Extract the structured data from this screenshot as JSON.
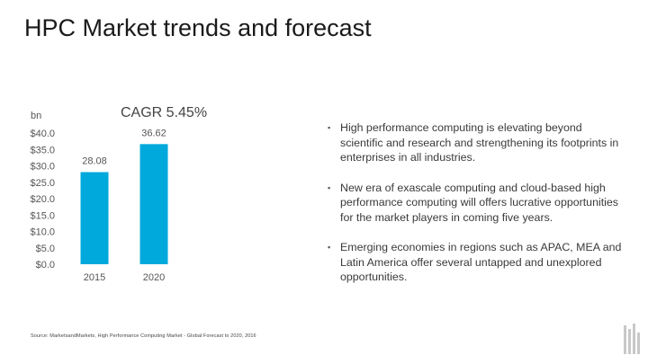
{
  "slide": {
    "title": "HPC Market trends and forecast",
    "source": "Source: MarketsandMarkets, High Performance Computing Market - Global Forecast to 2020, 2016"
  },
  "chart_data": {
    "type": "bar",
    "title": "CAGR 5.45%",
    "unit_label": "bn",
    "categories": [
      "2015",
      "2020"
    ],
    "values": [
      28.08,
      36.62
    ],
    "value_labels": [
      "28.08",
      "36.62"
    ],
    "ylim": [
      0,
      40
    ],
    "yticks": [
      "$40.0",
      "$35.0",
      "$30.0",
      "$25.0",
      "$20.0",
      "$15.0",
      "$10.0",
      "$5.0",
      "$0.0"
    ],
    "ytick_values": [
      40,
      35,
      30,
      25,
      20,
      15,
      10,
      5,
      0
    ],
    "bar_color": "#00a9dc",
    "grid": false,
    "legend": "none"
  },
  "bullets": [
    "High performance computing is elevating beyond scientific and research and strengthening its footprints in enterprises in all industries.",
    "New era of exascale computing and cloud-based high performance computing will offers lucrative opportunities for the market players in coming five years.",
    "Emerging economies in regions such as APAC, MEA and Latin America offer several untapped and unexplored opportunities."
  ],
  "bullet_marker": "▪",
  "logo": {
    "icon": "company-logo-icon",
    "color": "#c8c8c8"
  }
}
